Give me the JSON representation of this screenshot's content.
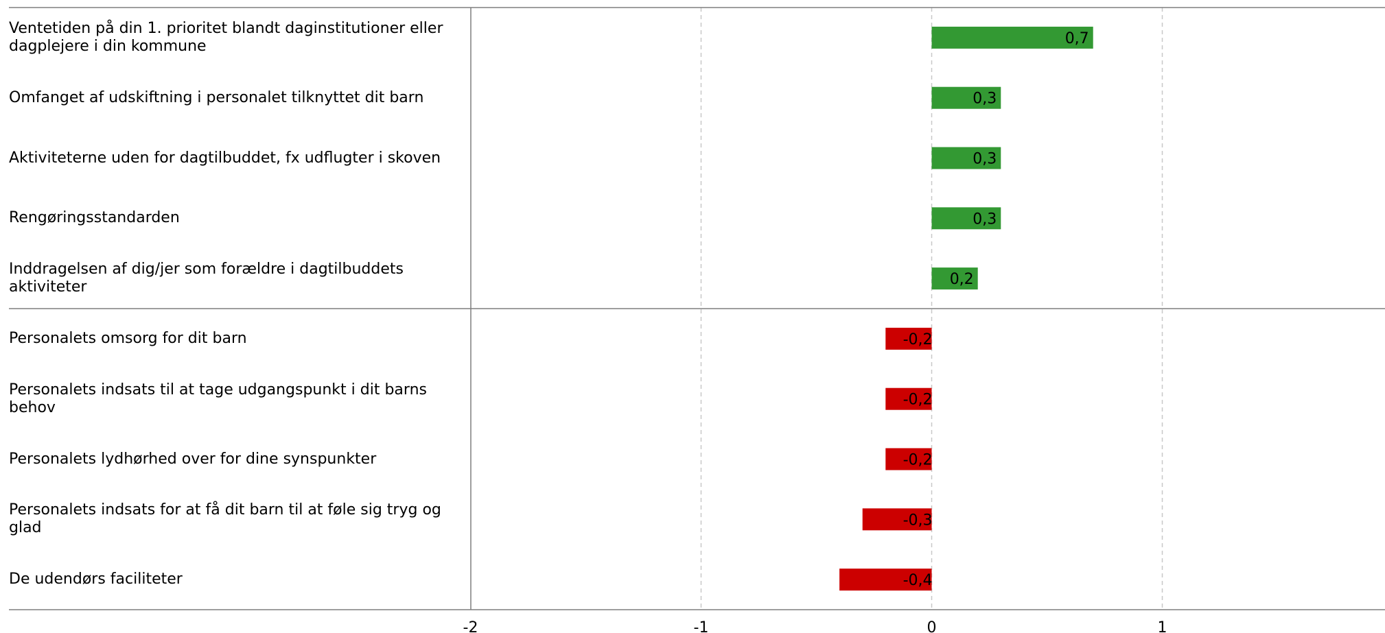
{
  "chart_data": {
    "type": "bar",
    "orientation": "horizontal",
    "categories": [
      "Ventetiden på din 1. prioritet blandt daginstitutioner eller dagplejere i din kommune",
      "Omfanget af udskiftning i personalet tilknyttet dit barn",
      "Aktiviteterne uden for dagtilbuddet, fx udflugter i skoven",
      "Rengøringsstandarden",
      "Inddragelsen af dig/jer som forældre i dagtilbuddets aktiviteter",
      "Personalets omsorg for dit barn",
      "Personalets indsats til at tage udgangspunkt i dit barns behov",
      "Personalets lydhørhed over for dine synspunkter",
      "Personalets indsats for at få dit barn til at føle sig tryg og glad",
      "De udendørs faciliteter"
    ],
    "values": [
      0.7,
      0.3,
      0.3,
      0.3,
      0.2,
      -0.2,
      -0.2,
      -0.2,
      -0.3,
      -0.4
    ],
    "value_labels": [
      "0,7",
      "0,3",
      "0,3",
      "0,3",
      "0,2",
      "-0,2",
      "-0,2",
      "-0,2",
      "-0,3",
      "-0,4"
    ],
    "xlim": [
      -2,
      2
    ],
    "xticks": [
      -2,
      -1,
      0,
      1
    ],
    "xtick_labels": [
      "-2",
      "-1",
      "0",
      "1"
    ],
    "grid": "vertical dashed",
    "colors": {
      "positive": "#339933",
      "negative": "#cc0000",
      "grid": "#c8c8c8",
      "axis": "#7f7f7f"
    }
  }
}
